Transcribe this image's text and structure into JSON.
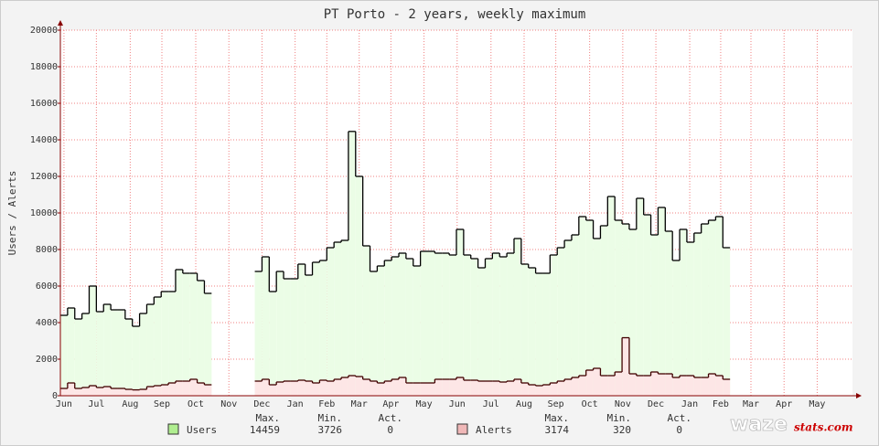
{
  "chart_data": {
    "type": "step",
    "title": "PT Porto - 2 years, weekly maximum",
    "y_label": "Users / Alerts",
    "x": [
      0,
      1,
      2,
      3,
      4,
      5,
      6,
      7,
      8,
      9,
      10,
      11,
      12,
      13,
      14,
      15,
      16,
      17,
      18,
      19,
      20,
      21,
      22,
      23,
      24,
      25,
      26,
      27,
      28,
      29,
      30,
      31,
      32,
      33,
      34,
      35,
      36,
      37,
      38,
      39,
      40,
      41,
      42,
      43,
      44,
      45,
      46,
      47,
      48,
      49,
      50,
      51,
      52,
      53,
      54,
      55,
      56,
      57,
      58,
      59,
      60,
      61,
      62,
      63,
      64,
      65,
      66,
      67,
      68,
      69,
      70,
      71,
      72,
      73,
      74,
      75,
      76,
      77,
      78,
      79,
      80,
      81,
      82,
      83,
      84,
      85,
      86,
      87,
      88,
      89,
      90,
      91,
      92
    ],
    "xlim": [
      0,
      110
    ],
    "xticks": [
      {
        "value": 0.5,
        "label": "Jun"
      },
      {
        "value": 5,
        "label": "Jul"
      },
      {
        "value": 9.7,
        "label": "Aug"
      },
      {
        "value": 14.1,
        "label": "Sep"
      },
      {
        "value": 18.8,
        "label": "Oct"
      },
      {
        "value": 23.4,
        "label": "Nov"
      },
      {
        "value": 28,
        "label": "Dec"
      },
      {
        "value": 32.6,
        "label": "Jan"
      },
      {
        "value": 37,
        "label": "Feb"
      },
      {
        "value": 41.5,
        "label": "Mar"
      },
      {
        "value": 45.9,
        "label": "Apr"
      },
      {
        "value": 50.5,
        "label": "May"
      },
      {
        "value": 55.1,
        "label": "Jun"
      },
      {
        "value": 59.8,
        "label": "Jul"
      },
      {
        "value": 64.4,
        "label": "Aug"
      },
      {
        "value": 68.8,
        "label": "Sep"
      },
      {
        "value": 73.5,
        "label": "Oct"
      },
      {
        "value": 78.1,
        "label": "Nov"
      },
      {
        "value": 82.7,
        "label": "Dec"
      },
      {
        "value": 87.4,
        "label": "Jan"
      },
      {
        "value": 91.7,
        "label": "Feb"
      },
      {
        "value": 95.9,
        "label": "Mar"
      },
      {
        "value": 100.5,
        "label": "Apr"
      },
      {
        "value": 105.1,
        "label": "May"
      }
    ],
    "ylim": [
      0,
      20000
    ],
    "yticks": [
      0,
      2000,
      4000,
      6000,
      8000,
      10000,
      12000,
      14000,
      16000,
      18000,
      20000
    ],
    "grid": true,
    "series": [
      {
        "name": "Users",
        "color": "#000000",
        "fill": "#ebfde6",
        "values": [
          4400,
          4800,
          4200,
          4500,
          6000,
          4600,
          5000,
          4700,
          4700,
          4200,
          3800,
          4500,
          5000,
          5400,
          5700,
          5700,
          6900,
          6700,
          6700,
          6300,
          5600,
          null,
          null,
          null,
          null,
          null,
          null,
          6800,
          7600,
          5700,
          6800,
          6400,
          6400,
          7200,
          6600,
          7300,
          7400,
          8100,
          8400,
          8500,
          14459,
          12000,
          8200,
          6800,
          7100,
          7400,
          7600,
          7800,
          7500,
          7100,
          7900,
          7900,
          7800,
          7800,
          7700,
          9100,
          7700,
          7500,
          7000,
          7500,
          7800,
          7600,
          7800,
          8600,
          7200,
          7000,
          6700,
          6700,
          7700,
          8100,
          8500,
          8800,
          9800,
          9600,
          8600,
          9300,
          10900,
          9600,
          9400,
          9100,
          10800,
          9900,
          8800,
          10300,
          9000,
          7400,
          9100,
          8400,
          8900,
          9400,
          9600,
          9800,
          8100
        ]
      },
      {
        "name": "Alerts",
        "color": "#400000",
        "fill": "#fde6e6",
        "values": [
          400,
          700,
          400,
          450,
          550,
          450,
          500,
          400,
          400,
          350,
          320,
          350,
          500,
          550,
          600,
          700,
          800,
          800,
          900,
          700,
          600,
          null,
          null,
          null,
          null,
          null,
          null,
          800,
          900,
          600,
          750,
          800,
          800,
          850,
          800,
          700,
          850,
          800,
          900,
          1000,
          1100,
          1050,
          900,
          800,
          700,
          800,
          900,
          1000,
          700,
          700,
          700,
          700,
          900,
          900,
          900,
          1000,
          850,
          850,
          800,
          800,
          800,
          750,
          800,
          900,
          700,
          600,
          550,
          600,
          700,
          800,
          900,
          1000,
          1100,
          1400,
          1500,
          1100,
          1100,
          1300,
          3174,
          1200,
          1100,
          1100,
          1300,
          1200,
          1200,
          1000,
          1100,
          1100,
          1000,
          1000,
          1200,
          1100,
          900
        ]
      }
    ],
    "stats_headers": [
      "Max.",
      "Min.",
      "Act."
    ],
    "stats": [
      [
        14459,
        3726,
        0
      ],
      [
        3174,
        320,
        0
      ]
    ],
    "logo": [
      "waze",
      "stats.com"
    ]
  }
}
